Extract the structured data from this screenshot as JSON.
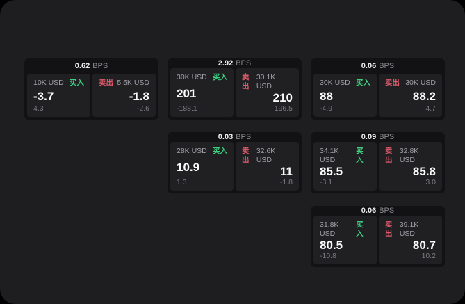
{
  "labels": {
    "bps": "BPS"
  },
  "colors": {
    "page_background": "#1e1e20",
    "card_background": "#121214",
    "panel_background": "#202023",
    "buy": "#3ecf7f",
    "sell": "#dd5a6b"
  },
  "cards": [
    {
      "bps": "0.62",
      "buy": {
        "amount": "10K USD",
        "side_label": "买入",
        "price": "-3.7",
        "change": "4.3"
      },
      "sell": {
        "side_label": "卖出",
        "amount": "5.5K USD",
        "price": "-1.8",
        "change": "-2.6"
      }
    },
    {
      "bps": "2.92",
      "buy": {
        "amount": "30K USD",
        "side_label": "买入",
        "price": "201",
        "change": "-188.1"
      },
      "sell": {
        "side_label": "卖出",
        "amount": "30.1K USD",
        "price": "210",
        "change": "196.5"
      }
    },
    {
      "bps": "0.06",
      "buy": {
        "amount": "30K USD",
        "side_label": "买入",
        "price": "88",
        "change": "-4.9"
      },
      "sell": {
        "side_label": "卖出",
        "amount": "30K USD",
        "price": "88.2",
        "change": "4.7"
      }
    },
    {
      "bps": "0.03",
      "buy": {
        "amount": "28K USD",
        "side_label": "买入",
        "price": "10.9",
        "change": "1.3"
      },
      "sell": {
        "side_label": "卖出",
        "amount": "32.6K USD",
        "price": "11",
        "change": "-1.8"
      }
    },
    {
      "bps": "0.09",
      "buy": {
        "amount": "34.1K USD",
        "side_label": "买入",
        "price": "85.5",
        "change": "-3.1"
      },
      "sell": {
        "side_label": "卖出",
        "amount": "32.8K USD",
        "price": "85.8",
        "change": "3.0"
      }
    },
    {
      "bps": "0.06",
      "buy": {
        "amount": "31.8K USD",
        "side_label": "买入",
        "price": "80.5",
        "change": "-10.8"
      },
      "sell": {
        "side_label": "卖出",
        "amount": "39.1K USD",
        "price": "80.7",
        "change": "10.2"
      }
    }
  ]
}
